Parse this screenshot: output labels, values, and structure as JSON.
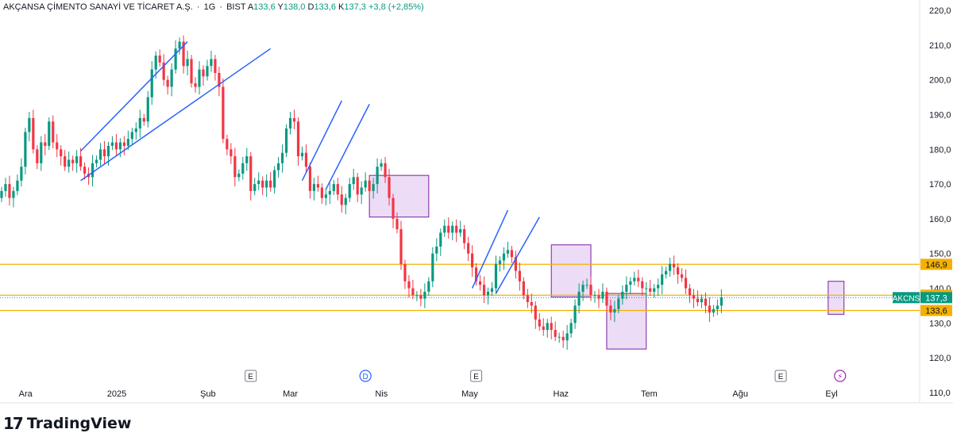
{
  "header": {
    "symbol_name": "AKÇANSA ÇİMENTO SANAYİ VE TİCARET A.Ş.",
    "interval": "1G",
    "exchange": "BIST",
    "open_label": "A",
    "open_value": "133,6",
    "high_label": "Y",
    "high_value": "138,0",
    "low_label": "D",
    "low_value": "133,6",
    "close_label": "K",
    "close_value": "137,3",
    "change": "+3,8 (+2,85%)"
  },
  "brand": {
    "logo_glyph": "17",
    "name": "TradingView"
  },
  "colors": {
    "up": "#089981",
    "down": "#f23645",
    "level": "#f5b000",
    "trend": "#2962ff",
    "box_fill": "#e1c4f0",
    "box_stroke": "#7b1fa2"
  },
  "chart_data": {
    "type": "candlestick",
    "ylim": [
      107,
      223
    ],
    "y_ticks": [
      110,
      120,
      130,
      140,
      150,
      160,
      170,
      180,
      190,
      200,
      210,
      220
    ],
    "y_tick_labels": [
      "110,0",
      "120,0",
      "130,0",
      "140,0",
      "150,0",
      "160,0",
      "170,0",
      "180,0",
      "190,0",
      "200,0",
      "210,0",
      "220,0"
    ],
    "x_labels": [
      {
        "label": "Ara",
        "date": "2024-12-01"
      },
      {
        "label": "2025",
        "date": "2025-01-01"
      },
      {
        "label": "Şub",
        "date": "2025-02-01"
      },
      {
        "label": "Mar",
        "date": "2025-03-01"
      },
      {
        "label": "Nis",
        "date": "2025-04-01"
      },
      {
        "label": "May",
        "date": "2025-05-01"
      },
      {
        "label": "Haz",
        "date": "2025-06-01"
      },
      {
        "label": "Tem",
        "date": "2025-07-01"
      },
      {
        "label": "Ağu",
        "date": "2025-08-01"
      },
      {
        "label": "Eyl",
        "date": "2025-09-01"
      }
    ],
    "close": [
      168,
      170,
      166,
      168,
      171,
      175,
      185,
      189,
      180,
      176,
      182,
      181,
      188,
      182,
      180,
      178,
      175,
      177,
      176,
      178,
      175,
      173,
      172,
      176,
      177,
      180,
      178,
      181,
      182,
      180,
      182,
      181,
      183,
      185,
      186,
      189,
      188,
      195,
      203,
      207,
      205,
      200,
      198,
      203,
      209,
      211,
      204,
      206,
      199,
      198,
      203,
      201,
      204,
      206,
      202,
      198,
      183,
      180,
      178,
      172,
      173,
      176,
      178,
      168,
      170,
      171,
      169,
      171,
      169,
      174,
      176,
      179,
      186,
      189,
      188,
      178,
      179,
      175,
      168,
      170,
      169,
      166,
      167,
      168,
      170,
      167,
      164,
      166,
      170,
      172,
      167,
      169,
      171,
      168,
      170,
      175,
      176,
      172,
      166,
      160,
      157,
      147,
      142,
      140,
      138,
      138,
      137,
      139,
      142,
      150,
      152,
      156,
      158,
      156,
      158,
      156,
      157,
      153,
      150,
      146,
      142,
      141,
      138,
      139,
      140,
      147,
      148,
      150,
      151,
      149,
      145,
      142,
      138,
      136,
      135,
      131,
      129,
      128,
      130,
      128,
      126,
      126,
      125,
      127,
      130,
      135,
      139,
      141,
      141,
      138,
      138,
      137,
      139,
      135,
      133,
      134,
      137,
      139,
      141,
      142,
      143,
      142,
      140,
      140,
      139,
      140,
      141,
      144,
      145,
      147,
      146,
      144,
      143,
      140,
      138,
      137,
      136,
      137,
      135,
      133,
      134,
      135,
      137.3
    ],
    "candles_note": "Daily OHLC approximated from the visual; wicks drawn per candle.",
    "levels": [
      {
        "value": 146.9,
        "label": "146,9"
      },
      {
        "value": 138.0,
        "label": "138,0"
      },
      {
        "value": 133.6,
        "label": "133,6"
      }
    ],
    "last_price": {
      "value": 137.3,
      "label": "137,3",
      "symbol": "AKCNS"
    },
    "boxes": [
      {
        "start": 93,
        "end": 108,
        "low": 160.5,
        "high": 172.5
      },
      {
        "start": 139,
        "end": 149,
        "low": 137.5,
        "high": 152.5
      },
      {
        "start": 153,
        "end": 163,
        "low": 122.5,
        "high": 138.5
      },
      {
        "start": 209,
        "end": 213,
        "low": 132.5,
        "high": 142
      }
    ],
    "trend_lines": [
      {
        "x1": 20,
        "y1": 179.5,
        "x2": 47,
        "y2": 211
      },
      {
        "x1": 20,
        "y1": 171,
        "x2": 68,
        "y2": 209
      },
      {
        "x1": 76,
        "y1": 171,
        "x2": 86,
        "y2": 194
      },
      {
        "x1": 82,
        "y1": 168.5,
        "x2": 93,
        "y2": 193
      },
      {
        "x1": 119,
        "y1": 140,
        "x2": 128,
        "y2": 162.5
      },
      {
        "x1": 125,
        "y1": 138.5,
        "x2": 136,
        "y2": 160.5
      }
    ],
    "event_markers": [
      {
        "index": 63,
        "glyph": "E",
        "kind": "earnings"
      },
      {
        "index": 92,
        "glyph": "D",
        "kind": "dividend"
      },
      {
        "index": 120,
        "glyph": "E",
        "kind": "earnings"
      },
      {
        "index": 197,
        "glyph": "E",
        "kind": "earnings"
      },
      {
        "index": 212,
        "glyph": "⚡",
        "kind": "news"
      }
    ]
  }
}
